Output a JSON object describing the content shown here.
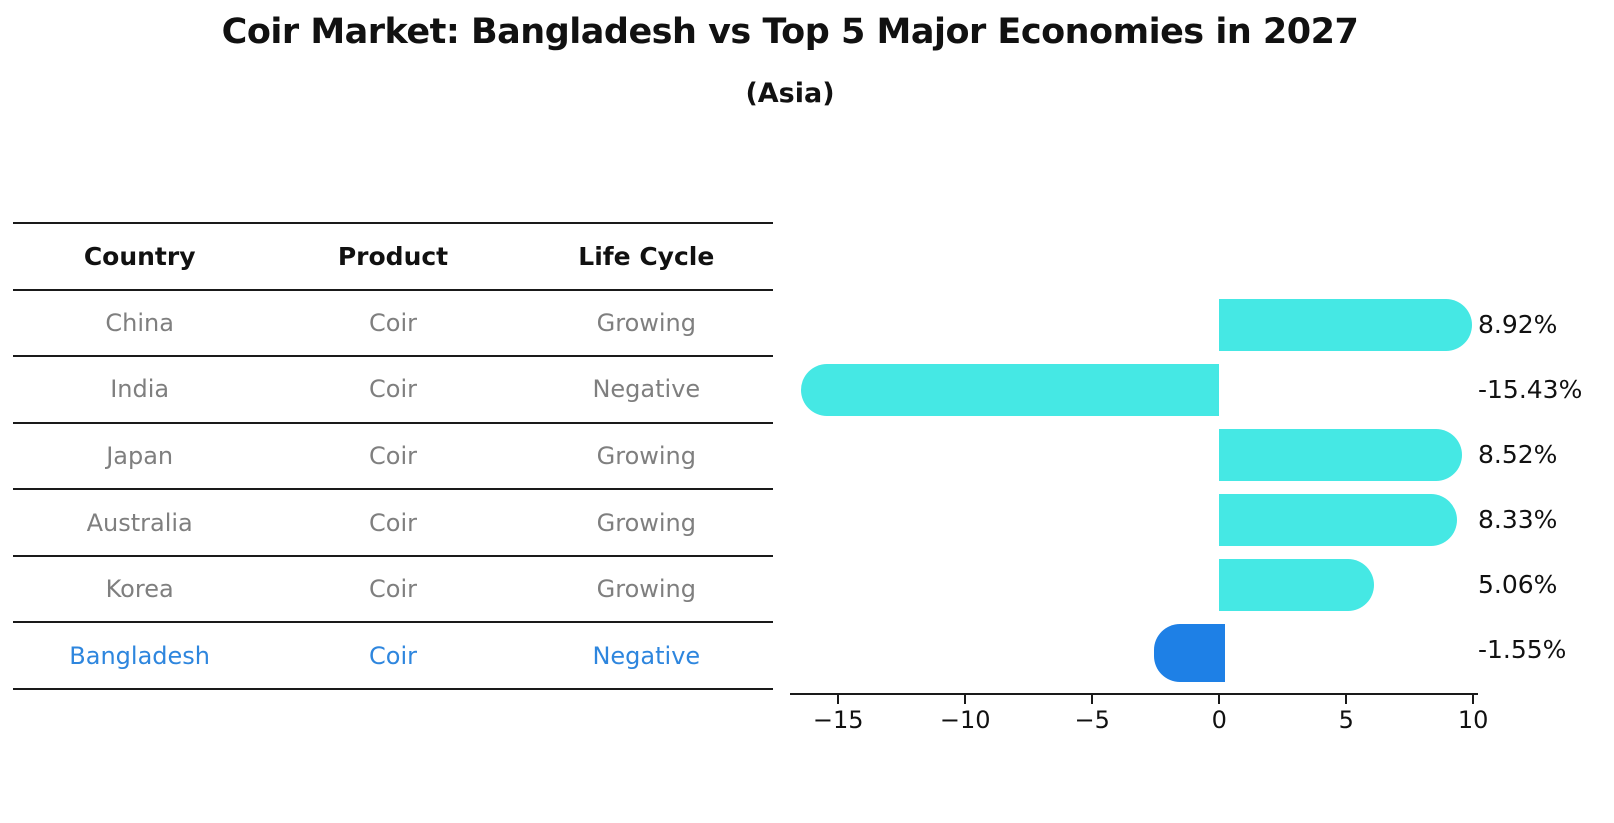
{
  "header": {
    "title": "Coir Market: Bangladesh vs Top 5 Major Economies in 2027",
    "subtitle": "(Asia)"
  },
  "table": {
    "headers": [
      "Country",
      "Product",
      "Life Cycle"
    ],
    "rows": [
      [
        "China",
        "Coir",
        "Growing"
      ],
      [
        "India",
        "Coir",
        "Negative"
      ],
      [
        "Japan",
        "Coir",
        "Growing"
      ],
      [
        "Australia",
        "Coir",
        "Growing"
      ],
      [
        "Korea",
        "Coir",
        "Growing"
      ],
      [
        "Bangladesh",
        "Coir",
        "Negative"
      ]
    ],
    "highlighted_row": "Bangladesh",
    "highlight_color": "#2e86de"
  },
  "chart_data": {
    "type": "bar",
    "orientation": "horizontal",
    "title": "Coir Market: Bangladesh vs Top 5 Major Economies in 2027",
    "subtitle": "(Asia)",
    "categories": [
      "China",
      "India",
      "Japan",
      "Australia",
      "Korea",
      "Bangladesh"
    ],
    "values": [
      8.92,
      -15.43,
      8.52,
      8.33,
      5.06,
      -1.55
    ],
    "value_labels": [
      "8.92%",
      "-15.43%",
      "8.52%",
      "8.33%",
      "5.06%",
      "-1.55%"
    ],
    "bar_colors": [
      "#45e8e4",
      "#45e8e4",
      "#45e8e4",
      "#45e8e4",
      "#45e8e4",
      "#1e80e6"
    ],
    "highlight_index": 5,
    "highlight_style": "dotted-edge",
    "xticks": [
      -15,
      -10,
      -5,
      0,
      5,
      10
    ],
    "xtick_labels": [
      "−15",
      "−10",
      "−5",
      "0",
      "5",
      "10"
    ],
    "xlim": [
      -16.9,
      10.15
    ],
    "xlabel": "",
    "ylabel": "",
    "grid": false,
    "legend": "none"
  }
}
